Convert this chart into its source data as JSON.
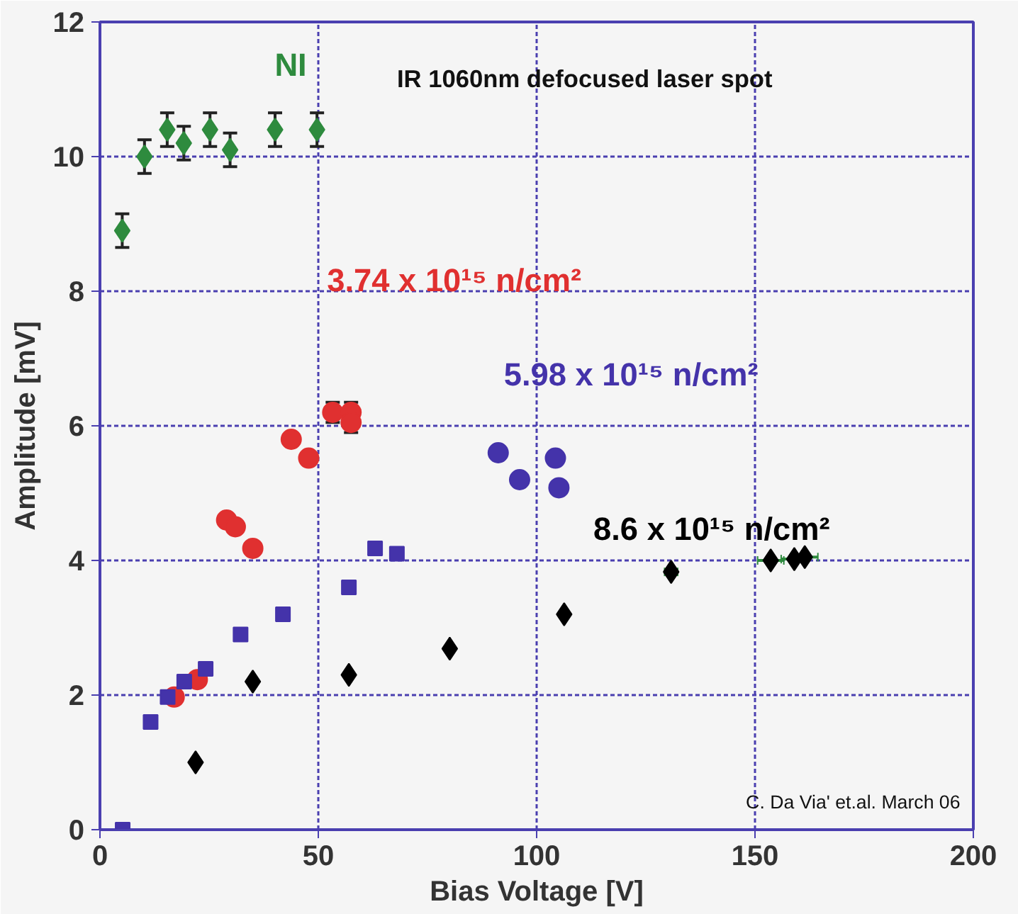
{
  "chart_data": {
    "type": "scatter",
    "xlabel": "Bias Voltage [V]",
    "ylabel": "Amplitude [mV]",
    "xlim": [
      0,
      200
    ],
    "ylim": [
      0,
      12
    ],
    "xticks": [
      0,
      50,
      100,
      150,
      200
    ],
    "yticks": [
      0,
      2,
      4,
      6,
      8,
      10,
      12
    ],
    "grid": true,
    "annotations": [
      "IR 1060nm defocused laser spot",
      "C. Da Via' et.al. March 06"
    ],
    "series": [
      {
        "name": "NI",
        "color": "#2e8b3e",
        "marker": "diamond",
        "x": [
          5.1,
          10.2,
          15.4,
          19.2,
          25.2,
          29.8,
          40.1,
          49.7
        ],
        "values": [
          8.9,
          10.0,
          10.4,
          10.2,
          10.4,
          10.1,
          10.4,
          10.4
        ],
        "errors": [
          0.25,
          0.25,
          0.25,
          0.25,
          0.25,
          0.25,
          0.25,
          0.25
        ]
      },
      {
        "name": "3.74 x 10¹⁵ n/cm²",
        "color": "#e03030",
        "marker": "circle",
        "x": [
          17,
          22.3,
          29,
          31,
          35,
          43.8,
          47.8,
          53.3,
          57.5,
          57.5
        ],
        "values": [
          1.97,
          2.23,
          4.6,
          4.5,
          4.18,
          5.8,
          5.52,
          6.2,
          6.2,
          6.05
        ],
        "errors": [
          null,
          null,
          null,
          null,
          null,
          null,
          null,
          0.15,
          0.15,
          0.15
        ]
      },
      {
        "color": "#4433aa",
        "marker": "square",
        "x": [
          5.2,
          11.6,
          15.5,
          19.3,
          24.2,
          32.2,
          41.9,
          57,
          63,
          68
        ],
        "values": [
          0,
          1.6,
          1.97,
          2.2,
          2.39,
          2.9,
          3.2,
          3.6,
          4.18,
          4.1
        ]
      },
      {
        "name": "5.98 x 10¹⁵ n/cm²",
        "color": "#4433aa",
        "marker": "circle",
        "x": [
          91.2,
          96.1,
          104.3,
          105.1
        ],
        "values": [
          5.6,
          5.2,
          5.52,
          5.08
        ]
      },
      {
        "name": "8.6 x 10¹⁵ n/cm²",
        "color": "#000000",
        "marker": "diamond",
        "x": [
          21.9,
          35,
          57,
          80.1,
          106.3,
          130.8,
          153.6,
          159,
          161.4
        ],
        "values": [
          1.0,
          2.2,
          2.3,
          2.69,
          3.2,
          3.83,
          4.0,
          4.02,
          4.05
        ],
        "xerrors": [
          null,
          null,
          null,
          null,
          null,
          1.5,
          3,
          3,
          3
        ]
      }
    ]
  }
}
